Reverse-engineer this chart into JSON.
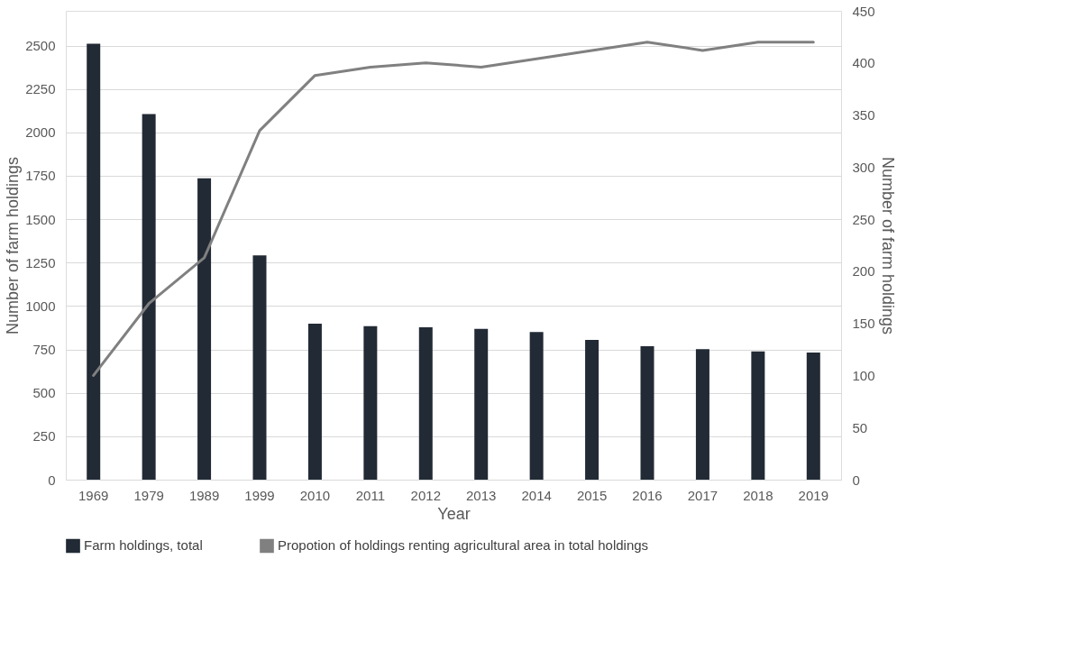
{
  "chart_data": {
    "type": "bar",
    "categories": [
      "1969",
      "1979",
      "1989",
      "1999",
      "2010",
      "2011",
      "2012",
      "2013",
      "2014",
      "2015",
      "2016",
      "2017",
      "2018",
      "2019"
    ],
    "xlabel": "Year",
    "ylabel": "Number of farm holdings",
    "y2label": "Number of farm holdings",
    "series": [
      {
        "name": "Farm holdings, total",
        "color": "#222a35",
        "values": [
          2510,
          2105,
          1735,
          1292,
          898,
          884,
          878,
          868,
          850,
          805,
          769,
          751,
          739,
          732
        ]
      },
      {
        "name": "Propotion of holdings renting agricultural area in total holdings",
        "type": "line",
        "axis": "y2",
        "color": "#808080",
        "values": [
          100,
          169,
          213,
          335,
          388,
          396,
          400,
          396,
          404,
          412,
          420,
          412,
          420,
          420
        ]
      }
    ],
    "ylim": [
      0,
      2700
    ],
    "yticks": [
      0,
      250,
      500,
      750,
      1000,
      1250,
      1500,
      1750,
      2000,
      2250,
      2500
    ],
    "y2lim": [
      0,
      450
    ],
    "y2ticks": [
      0,
      50,
      100,
      150,
      200,
      250,
      300,
      350,
      400,
      450
    ],
    "grid": "y",
    "legend": "bottom"
  }
}
